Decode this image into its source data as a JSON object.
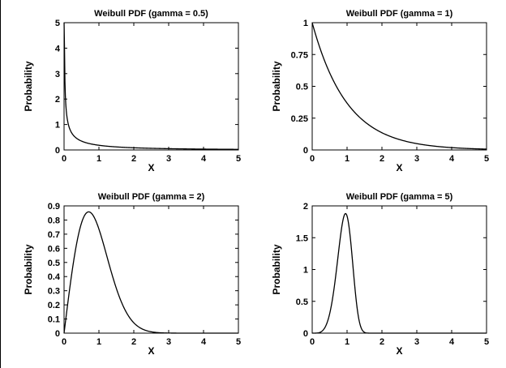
{
  "chart_data": [
    {
      "type": "line",
      "title": "Weibull PDF (gamma = 0.5)",
      "xlabel": "X",
      "ylabel": "Probability",
      "gamma": 0.5,
      "xlim": [
        0,
        5
      ],
      "ylim": [
        0,
        5
      ],
      "xticks": [
        "0",
        "1",
        "2",
        "3",
        "4",
        "5"
      ],
      "yticks": [
        "0",
        "1",
        "2",
        "3",
        "4",
        "5"
      ],
      "grid": false,
      "x": [
        0.01,
        0.05,
        0.1,
        0.2,
        0.3,
        0.5,
        0.75,
        1,
        1.5,
        2,
        2.5,
        3,
        3.5,
        4,
        4.5,
        5
      ],
      "y": [
        4.5,
        1.78,
        1.15,
        0.72,
        0.53,
        0.35,
        0.24,
        0.18,
        0.11,
        0.09,
        0.05,
        0.04,
        0.03,
        0.03,
        0.02,
        0.02
      ]
    },
    {
      "type": "line",
      "title": "Weibull PDF (gamma = 1)",
      "xlabel": "X",
      "ylabel": "Probability",
      "gamma": 1,
      "xlim": [
        0,
        5
      ],
      "ylim": [
        0,
        1
      ],
      "xticks": [
        "0",
        "1",
        "2",
        "3",
        "4",
        "5"
      ],
      "yticks": [
        "0",
        "0.25",
        "0.5",
        "0.75",
        "1"
      ],
      "grid": false,
      "x": [
        0,
        0.25,
        0.5,
        0.75,
        1,
        1.5,
        2,
        2.5,
        3,
        3.5,
        4,
        4.5,
        5
      ],
      "y": [
        1,
        0.78,
        0.61,
        0.47,
        0.37,
        0.22,
        0.14,
        0.08,
        0.05,
        0.03,
        0.02,
        0.01,
        0.01
      ]
    },
    {
      "type": "line",
      "title": "Weibull PDF (gamma = 2)",
      "xlabel": "X",
      "ylabel": "Probability",
      "gamma": 2,
      "xlim": [
        0,
        5
      ],
      "ylim": [
        0,
        0.9
      ],
      "xticks": [
        "0",
        "1",
        "2",
        "3",
        "4",
        "5"
      ],
      "yticks": [
        "0",
        "0.1",
        "0.2",
        "0.3",
        "0.4",
        "0.5",
        "0.6",
        "0.7",
        "0.8",
        "0.9"
      ],
      "grid": false,
      "x": [
        0,
        0.25,
        0.5,
        0.71,
        1,
        1.25,
        1.5,
        1.75,
        2,
        2.25,
        2.5,
        3,
        3.5,
        4,
        5
      ],
      "y": [
        0,
        0.47,
        0.78,
        0.86,
        0.74,
        0.52,
        0.32,
        0.17,
        0.07,
        0.03,
        0.01,
        0,
        0,
        0,
        0
      ]
    },
    {
      "type": "line",
      "title": "Weibull PDF (gamma = 5)",
      "xlabel": "X",
      "ylabel": "Probability",
      "gamma": 5,
      "xlim": [
        0,
        5
      ],
      "ylim": [
        0,
        2
      ],
      "xticks": [
        "0",
        "1",
        "2",
        "3",
        "4",
        "5"
      ],
      "yticks": [
        "0",
        "0.5",
        "1",
        "1.5",
        "2"
      ],
      "grid": false,
      "x": [
        0,
        0.3,
        0.5,
        0.6,
        0.7,
        0.8,
        0.9,
        0.96,
        1,
        1.1,
        1.2,
        1.3,
        1.4,
        1.5,
        1.7,
        2,
        3,
        4,
        5
      ],
      "y": [
        0,
        0.04,
        0.3,
        0.58,
        1.03,
        1.48,
        1.81,
        1.86,
        1.84,
        1.46,
        0.86,
        0.35,
        0.09,
        0.02,
        0,
        0,
        0,
        0,
        0
      ]
    }
  ]
}
